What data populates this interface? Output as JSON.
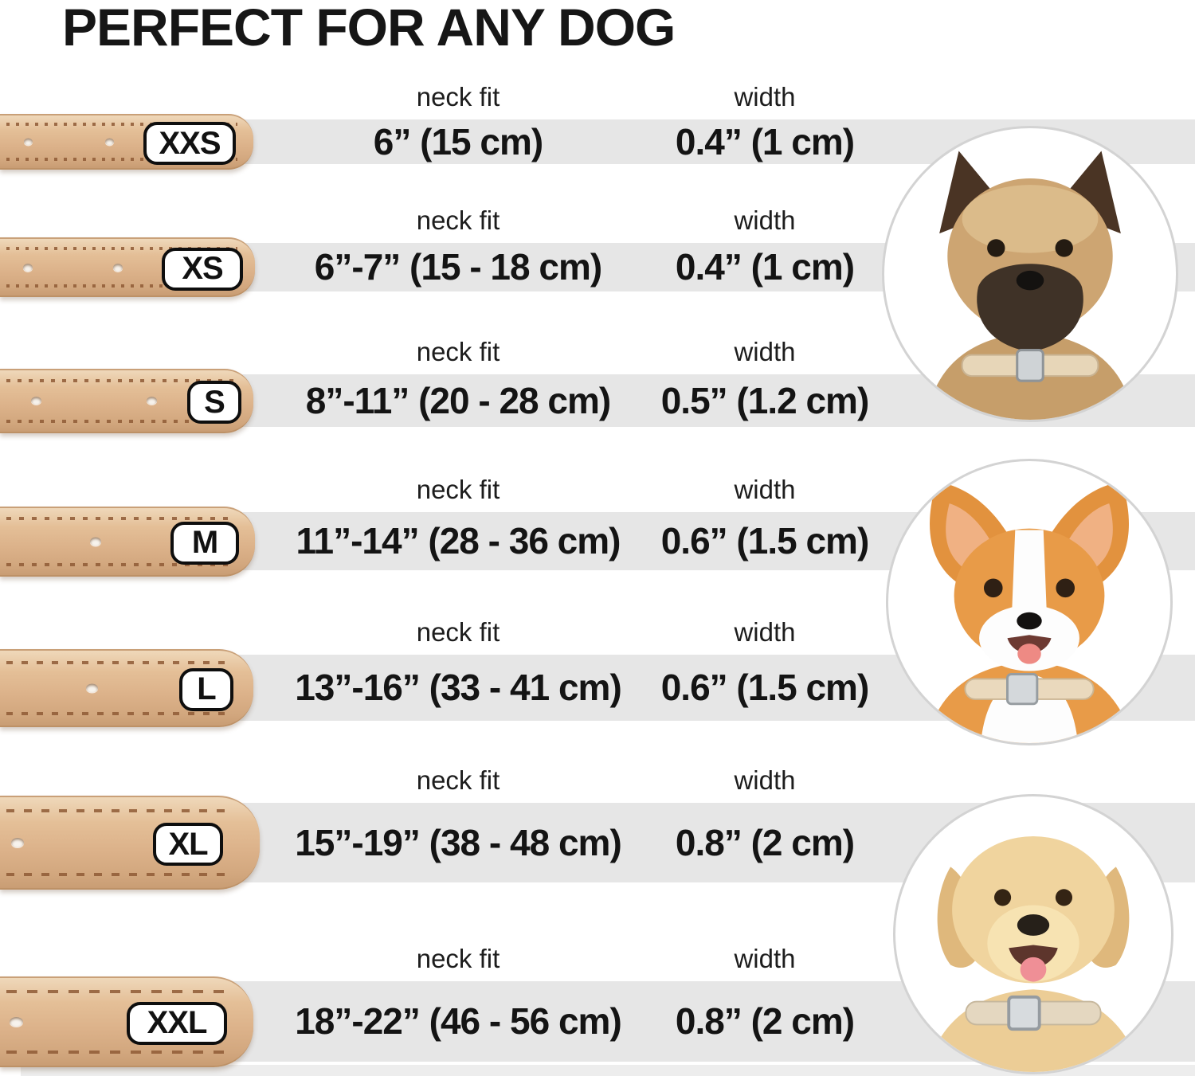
{
  "title": "PERFECT FOR ANY DOG",
  "column_headers": {
    "neck_fit": "neck fit",
    "width": "width"
  },
  "rows": [
    {
      "size": "XXS",
      "neck_fit": "6” (15 cm)",
      "width": "0.4” (1 cm)"
    },
    {
      "size": "XS",
      "neck_fit": "6”-7” (15 - 18 cm)",
      "width": "0.4” (1 cm)"
    },
    {
      "size": "S",
      "neck_fit": "8”-11” (20 - 28 cm)",
      "width": "0.5” (1.2 cm)"
    },
    {
      "size": "M",
      "neck_fit": "11”-14” (28 - 36 cm)",
      "width": "0.6” (1.5 cm)"
    },
    {
      "size": "L",
      "neck_fit": "13”-16” (33 - 41 cm)",
      "width": "0.6” (1.5 cm)"
    },
    {
      "size": "XL",
      "neck_fit": "15”-19” (38 - 48 cm)",
      "width": "0.8” (2 cm)"
    },
    {
      "size": "XXL",
      "neck_fit": "18”-22” (46 - 56 cm)",
      "width": "0.8” (2 cm)"
    }
  ],
  "dogs": [
    {
      "id": "terrier",
      "description": "small shaggy terrier wearing a beige leather collar"
    },
    {
      "id": "corgi",
      "description": "corgi wearing a beige leather collar"
    },
    {
      "id": "labrador",
      "description": "yellow labrador wearing a beige leather collar"
    }
  ],
  "colors": {
    "stripe_gray": "#e6e6e6",
    "stripe_light_gray": "#ededed",
    "collar_tan": "#dcb28a",
    "collar_tan_light": "#efd8ba",
    "collar_tan_dark": "#c99d74",
    "stitch_brown": "#8f5a35",
    "badge_border": "#0e0e0e",
    "text_black": "#161616",
    "circle_border": "#d3d3d3"
  }
}
